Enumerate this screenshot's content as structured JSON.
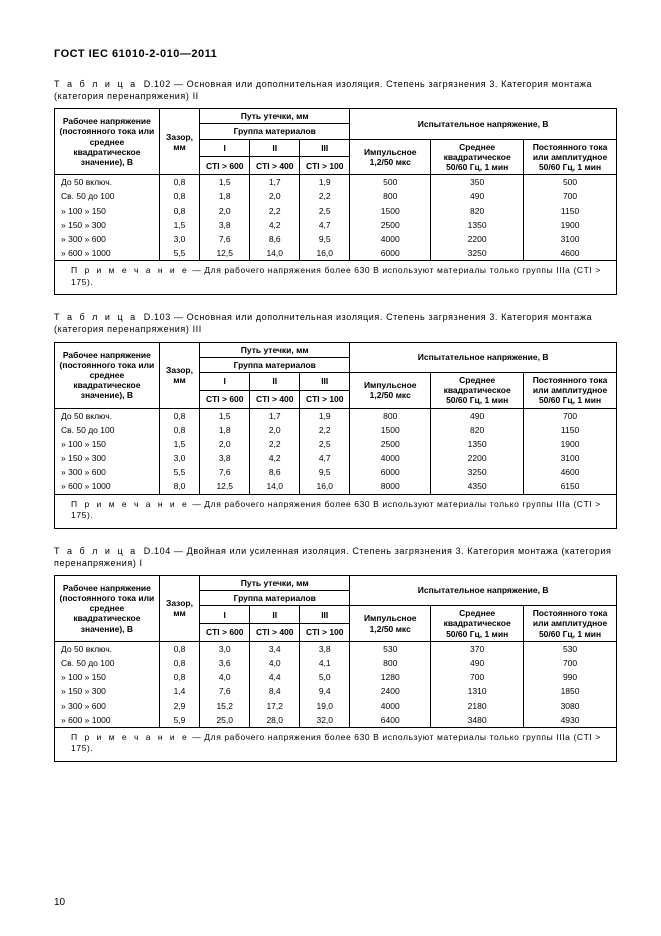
{
  "standard_title": "ГОСТ  IEC 61010-2-010—2011",
  "page_number": "10",
  "common": {
    "col_voltage_header": "Рабочее напряжение (постоянного тока или среднее квадратическое значение), В",
    "col_gap": "Зазор, мм",
    "creepage_header": "Путь утечки, мм",
    "material_group": "Группа материалов",
    "grp1": "I",
    "grp2": "II",
    "grp3": "III",
    "cti1": "CTI > 600",
    "cti2": "CTI > 400",
    "cti3": "CTI > 100",
    "test_voltage_header": "Испытательное напряжение, В",
    "impulse": "Импульсное 1,2/50 мкс",
    "rms": "Среднее квадратическое 50/60 Гц, 1 мин",
    "dcp": "Постоянного тока или амплитудное 50/60 Гц, 1 мин"
  },
  "tables": [
    {
      "caption_prefix": "Т а б л и ц а",
      "caption_num": "D.102",
      "caption_rest": "— Основная или дополнительная изоляция. Степень загрязнения 3. Категория монтажа (категория перенапряжения) II",
      "rows": [
        {
          "label": "До  50 включ.",
          "gap": "0,8",
          "c1": "1,5",
          "c2": "1,7",
          "c3": "1,9",
          "imp": "500",
          "rms": "350",
          "dc": "500"
        },
        {
          "label": "Св. 50 до 100",
          "gap": "0,8",
          "c1": "1,8",
          "c2": "2,0",
          "c3": "2,2",
          "imp": "800",
          "rms": "490",
          "dc": "700"
        },
        {
          "label": "» 100  »   150",
          "gap": "0,8",
          "c1": "2,0",
          "c2": "2,2",
          "c3": "2,5",
          "imp": "1500",
          "rms": "820",
          "dc": "1150"
        },
        {
          "label": "» 150  »   300",
          "gap": "1,5",
          "c1": "3,8",
          "c2": "4,2",
          "c3": "4,7",
          "imp": "2500",
          "rms": "1350",
          "dc": "1900"
        },
        {
          "label": "» 300  »   600",
          "gap": "3,0",
          "c1": "7,6",
          "c2": "8,6",
          "c3": "9,5",
          "imp": "4000",
          "rms": "2200",
          "dc": "3100"
        },
        {
          "label": "» 600  » 1000",
          "gap": "5,5",
          "c1": "12,5",
          "c2": "14,0",
          "c3": "16,0",
          "imp": "6000",
          "rms": "3250",
          "dc": "4600"
        }
      ],
      "note_prefix": "П р и м е ч а н и е",
      "note_rest": "— Для рабочего напряжения более 630 В используют материалы только группы IIIа (CTI > 175)."
    },
    {
      "caption_prefix": "Т а б л и ц а",
      "caption_num": "D.103",
      "caption_rest": "— Основная или дополнительная изоляция. Степень загрязнения 3. Категория монтажа (категория перенапряжения) III",
      "rows": [
        {
          "label": "До  50 включ.",
          "gap": "0,8",
          "c1": "1,5",
          "c2": "1,7",
          "c3": "1,9",
          "imp": "800",
          "rms": "490",
          "dc": "700"
        },
        {
          "label": "Св. 50 до 100",
          "gap": "0,8",
          "c1": "1,8",
          "c2": "2,0",
          "c3": "2,2",
          "imp": "1500",
          "rms": "820",
          "dc": "1150"
        },
        {
          "label": "» 100  »   150",
          "gap": "1,5",
          "c1": "2,0",
          "c2": "2,2",
          "c3": "2,5",
          "imp": "2500",
          "rms": "1350",
          "dc": "1900"
        },
        {
          "label": "» 150  »   300",
          "gap": "3,0",
          "c1": "3,8",
          "c2": "4,2",
          "c3": "4,7",
          "imp": "4000",
          "rms": "2200",
          "dc": "3100"
        },
        {
          "label": "» 300  »   600",
          "gap": "5,5",
          "c1": "7,6",
          "c2": "8,6",
          "c3": "9,5",
          "imp": "6000",
          "rms": "3250",
          "dc": "4600"
        },
        {
          "label": "» 600  » 1000",
          "gap": "8,0",
          "c1": "12,5",
          "c2": "14,0",
          "c3": "16,0",
          "imp": "8000",
          "rms": "4350",
          "dc": "6150"
        }
      ],
      "note_prefix": "П р и м е ч а н и е",
      "note_rest": "— Для рабочего напряжения более 630 В используют материалы только группы IIIа (CTI > 175)."
    },
    {
      "caption_prefix": "Т а б л и ц а",
      "caption_num": "D.104",
      "caption_rest": "— Двойная или усиленная изоляция. Степень загрязнения 3. Категория монтажа (категория перенапряжения) I",
      "rows": [
        {
          "label": "До  50 включ.",
          "gap": "0,8",
          "c1": "3,0",
          "c2": "3,4",
          "c3": "3,8",
          "imp": "530",
          "rms": "370",
          "dc": "530"
        },
        {
          "label": "Св. 50 до 100",
          "gap": "0,8",
          "c1": "3,6",
          "c2": "4,0",
          "c3": "4,1",
          "imp": "800",
          "rms": "490",
          "dc": "700"
        },
        {
          "label": "» 100  »   150",
          "gap": "0,8",
          "c1": "4,0",
          "c2": "4,4",
          "c3": "5,0",
          "imp": "1280",
          "rms": "700",
          "dc": "990"
        },
        {
          "label": "» 150  »   300",
          "gap": "1,4",
          "c1": "7,6",
          "c2": "8,4",
          "c3": "9,4",
          "imp": "2400",
          "rms": "1310",
          "dc": "1850"
        },
        {
          "label": "» 300  »   600",
          "gap": "2,9",
          "c1": "15,2",
          "c2": "17,2",
          "c3": "19,0",
          "imp": "4000",
          "rms": "2180",
          "dc": "3080"
        },
        {
          "label": "» 600  » 1000",
          "gap": "5,9",
          "c1": "25,0",
          "c2": "28,0",
          "c3": "32,0",
          "imp": "6400",
          "rms": "3480",
          "dc": "4930"
        }
      ],
      "note_prefix": "П р и м е ч а н и е",
      "note_rest": "— Для рабочего напряжения более 630 В используют материалы только группы IIIа (CTI > 175)."
    }
  ]
}
